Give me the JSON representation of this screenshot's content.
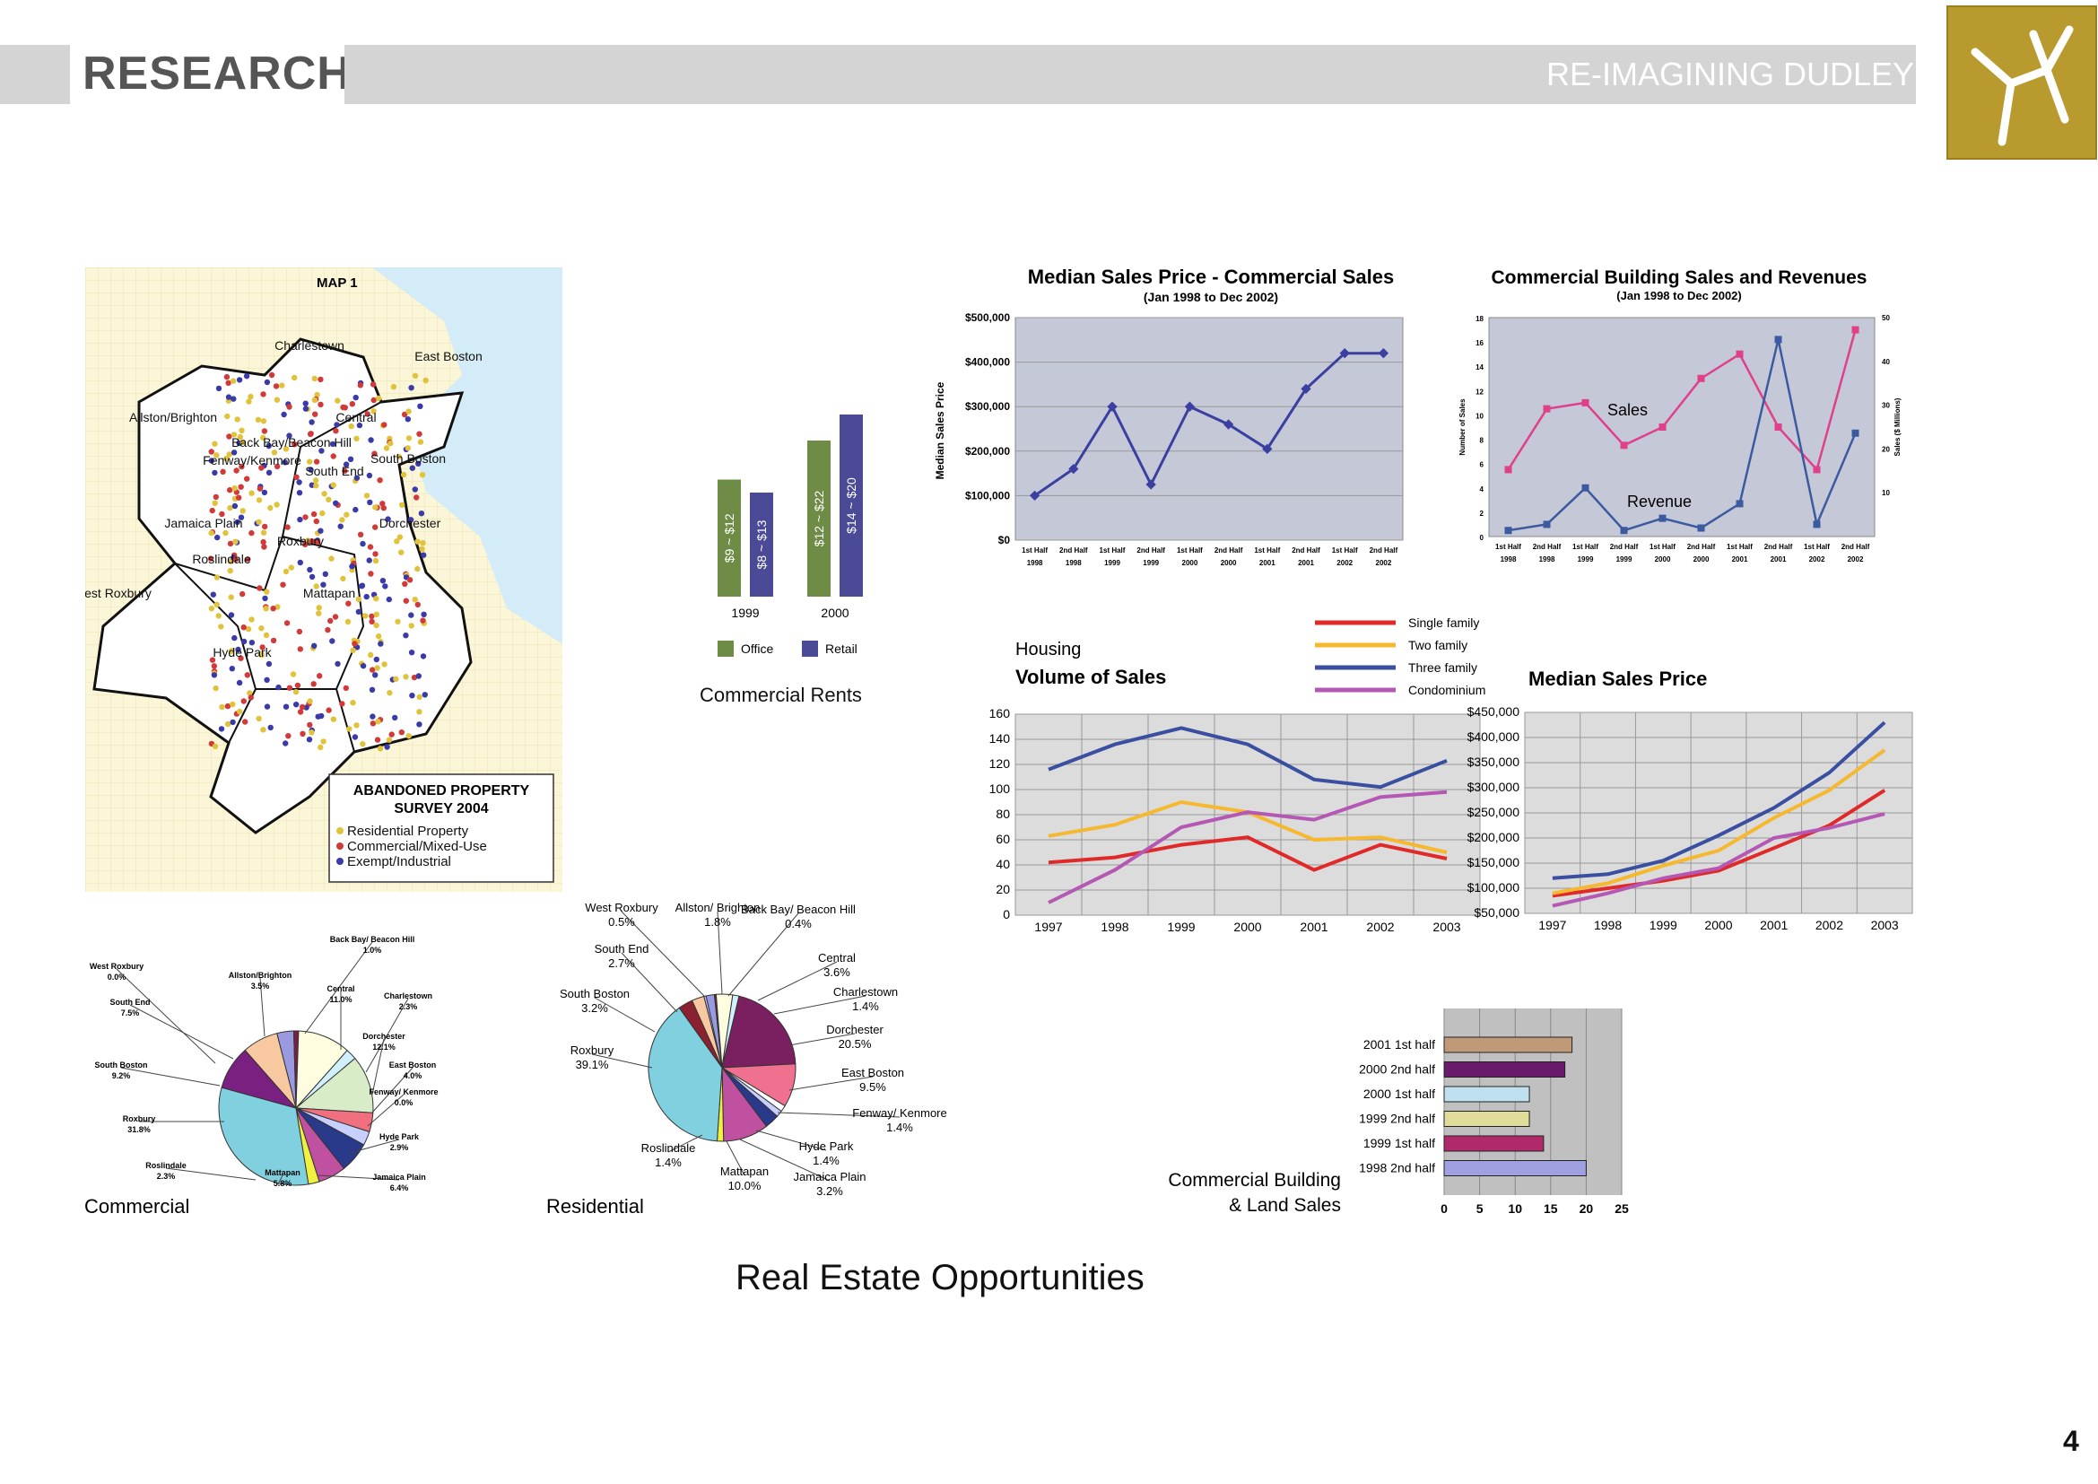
{
  "header": {
    "left_title": "RESEARCH",
    "right_title": "RE-IMAGINING DUDLEY",
    "page_number": "4",
    "accent": "#b89a2e"
  },
  "page_title": "Real Estate Opportunities",
  "map": {
    "map_label": "MAP 1",
    "legend_title_1": "ABANDONED PROPERTY",
    "legend_title_2": "SURVEY 2004",
    "legend_items": [
      {
        "label": "Residential Property",
        "color": "#e0c33a"
      },
      {
        "label": "Commercial/Mixed-Use",
        "color": "#d23a3a"
      },
      {
        "label": "Exempt/Industrial",
        "color": "#3a3aa8"
      }
    ],
    "neighborhoods": [
      "Charlestown",
      "East Boston",
      "Allston/Brighton",
      "Central",
      "Back Bay/Beacon Hill",
      "Fenway/Kenmore",
      "South Boston",
      "South End",
      "Jamaica Plain",
      "Dorchester",
      "Roxbury",
      "Roslindale",
      "Mattapan",
      "West Roxbury",
      "Hyde Park"
    ]
  },
  "rents": {
    "caption": "Commercial Rents",
    "categories": [
      "1999",
      "2000"
    ],
    "series": [
      {
        "name": "Office",
        "color": "#6e8c45",
        "labels": [
          "$9 ~ $12",
          "$12 ~ $22"
        ],
        "values": [
          9,
          12
        ]
      },
      {
        "name": "Retail",
        "color": "#4a4a96",
        "labels": [
          "$8 ~ $13",
          "$14 ~ $20"
        ],
        "values": [
          8,
          14
        ]
      }
    ]
  },
  "chart_data": [
    {
      "type": "line",
      "title": "Median Sales Price - Commercial Sales",
      "subtitle": "(Jan 1998 to Dec 2002)",
      "ylabel": "Median Sales Price",
      "categories": [
        "1st Half 1998",
        "2nd Half 1998",
        "1st Half 1999",
        "2nd Half 1999",
        "1st Half 2000",
        "2nd Half 2000",
        "1st Half 2001",
        "2nd Half 2001",
        "1st Half 2002",
        "2nd Half 2002"
      ],
      "x_top": [
        "1st Half",
        "2nd Half",
        "1st Half",
        "2nd Half",
        "1st Half",
        "2nd Half",
        "1st Half",
        "2nd Half",
        "1st Half",
        "2nd Half"
      ],
      "x_bottom": [
        "1998",
        "1998",
        "1999",
        "1999",
        "2000",
        "2000",
        "2001",
        "2001",
        "2002",
        "2002"
      ],
      "yticks": [
        "$0",
        "$100,000",
        "$200,000",
        "$300,000",
        "$400,000",
        "$500,000"
      ],
      "ylim": [
        0,
        500000
      ],
      "series": [
        {
          "values": [
            100000,
            160000,
            300000,
            125000,
            300000,
            260000,
            205000,
            340000,
            420000,
            420000
          ],
          "color": "#3b3fa0"
        }
      ]
    },
    {
      "type": "line",
      "title": "Commercial Building Sales and Revenues",
      "subtitle": "(Jan 1998 to Dec 2002)",
      "ylabel": "Number of Sales",
      "y2label": "Sales ($ Millions)",
      "x_top": [
        "1st Half",
        "2nd Half",
        "1st Half",
        "2nd Half",
        "1st Half",
        "2nd Half",
        "1st Half",
        "2nd Half",
        "1st Half",
        "2nd Half"
      ],
      "x_bottom": [
        "1998",
        "1998",
        "1999",
        "1999",
        "2000",
        "2000",
        "2001",
        "2001",
        "2002",
        "2002"
      ],
      "yticks": [
        "0",
        "2",
        "4",
        "6",
        "8",
        "10",
        "12",
        "14",
        "16",
        "18"
      ],
      "ylim": [
        0,
        18
      ],
      "y2ticks": [
        "10",
        "20",
        "30",
        "40",
        "50"
      ],
      "y2lim": [
        0,
        50
      ],
      "series": [
        {
          "name": "Sales",
          "axis": "left",
          "values": [
            5.5,
            10.5,
            11,
            7.5,
            9,
            13,
            15,
            9,
            5.5,
            17
          ],
          "color": "#e0408a"
        },
        {
          "name": "Revenue",
          "axis": "left",
          "values": [
            0.5,
            1,
            4,
            0.5,
            1.5,
            0.7,
            2.7,
            16.2,
            1,
            8.5
          ],
          "color": "#3b5aa0"
        }
      ]
    },
    {
      "type": "line",
      "title": "Volume of Sales",
      "subtitle": "Housing",
      "categories": [
        "1997",
        "1998",
        "1999",
        "2000",
        "2001",
        "2002",
        "2003"
      ],
      "yticks": [
        "0",
        "20",
        "40",
        "60",
        "80",
        "100",
        "120",
        "140",
        "160"
      ],
      "ylim": [
        0,
        160
      ],
      "series": [
        {
          "name": "Single family",
          "values": [
            42,
            46,
            56,
            62,
            36,
            56,
            45
          ],
          "color": "#e02a2a"
        },
        {
          "name": "Two family",
          "values": [
            63,
            72,
            90,
            82,
            60,
            62,
            50
          ],
          "color": "#f5b82e"
        },
        {
          "name": "Three family",
          "values": [
            116,
            136,
            149,
            136,
            108,
            102,
            123
          ],
          "color": "#3a4fa0"
        },
        {
          "name": "Condominium",
          "values": [
            10,
            36,
            70,
            82,
            76,
            94,
            98
          ],
          "color": "#b458b4"
        }
      ]
    },
    {
      "type": "line",
      "title": "Median Sales Price",
      "categories": [
        "1997",
        "1998",
        "1999",
        "2000",
        "2001",
        "2002",
        "2003"
      ],
      "yticks": [
        "$50,000",
        "$100,000",
        "$150,000",
        "$200,000",
        "$250,000",
        "$300,000",
        "$350,000",
        "$400,000",
        "$450,000"
      ],
      "ylim": [
        50000,
        450000
      ],
      "series": [
        {
          "name": "Single family",
          "values": [
            85000,
            100000,
            115000,
            135000,
            180000,
            225000,
            295000
          ],
          "color": "#e02a2a"
        },
        {
          "name": "Two family",
          "values": [
            90000,
            110000,
            145000,
            175000,
            240000,
            295000,
            375000
          ],
          "color": "#f5b82e"
        },
        {
          "name": "Three family",
          "values": [
            120000,
            128000,
            155000,
            205000,
            260000,
            330000,
            430000
          ],
          "color": "#3a4fa0"
        },
        {
          "name": "Condominium",
          "values": [
            65000,
            90000,
            120000,
            140000,
            200000,
            220000,
            248000
          ],
          "color": "#b458b4"
        }
      ]
    },
    {
      "type": "pie",
      "caption": "Commercial",
      "slices": [
        {
          "label": "West Roxbury",
          "value": "0.0%",
          "pct": 0.0,
          "color": "#c0c0ff"
        },
        {
          "label": "Allston/Brighton",
          "value": "3.5%",
          "pct": 3.5,
          "color": "#9a9ae0"
        },
        {
          "label": "Back Bay/ Beacon Hill",
          "value": "1.0%",
          "pct": 1.0,
          "color": "#7a2040"
        },
        {
          "label": "Central",
          "value": "11.0%",
          "pct": 11.0,
          "color": "#fffde0"
        },
        {
          "label": "Charlestown",
          "value": "2.3%",
          "pct": 2.3,
          "color": "#d0f0ff"
        },
        {
          "label": "Dorchester",
          "value": "12.1%",
          "pct": 12.1,
          "color": "#d8ecc8"
        },
        {
          "label": "East Boston",
          "value": "4.0%",
          "pct": 4.0,
          "color": "#f07080"
        },
        {
          "label": "Fenway/ Kenmore",
          "value": "0.0%",
          "pct": 0.0,
          "color": "#ffffff"
        },
        {
          "label": "Hyde Park",
          "value": "2.9%",
          "pct": 2.9,
          "color": "#c8d0ff"
        },
        {
          "label": "Jamaica Plain",
          "value": "6.4%",
          "pct": 6.4,
          "color": "#2a3a8a"
        },
        {
          "label": "Mattapan",
          "value": "5.8%",
          "pct": 5.8,
          "color": "#c050a0"
        },
        {
          "label": "Roslindale",
          "value": "2.3%",
          "pct": 2.3,
          "color": "#f0f040"
        },
        {
          "label": "Roxbury",
          "value": "31.8%",
          "pct": 31.8,
          "color": "#80d0e0"
        },
        {
          "label": "South Boston",
          "value": "9.2%",
          "pct": 9.2,
          "color": "#7a2080"
        },
        {
          "label": "South End",
          "value": "7.5%",
          "pct": 7.5,
          "color": "#f8c8a0"
        }
      ]
    },
    {
      "type": "pie",
      "caption": "Residential",
      "slices": [
        {
          "label": "West Roxbury",
          "value": "0.5%",
          "pct": 0.5,
          "color": "#c0c0ff"
        },
        {
          "label": "Allston/ Brighton",
          "value": "1.8%",
          "pct": 1.8,
          "color": "#9a9ae0"
        },
        {
          "label": "Back Bay/ Beacon Hill",
          "value": "0.4%",
          "pct": 0.4,
          "color": "#7a2040"
        },
        {
          "label": "Central",
          "value": "3.6%",
          "pct": 3.6,
          "color": "#fffde0"
        },
        {
          "label": "Charlestown",
          "value": "1.4%",
          "pct": 1.4,
          "color": "#d0f0ff"
        },
        {
          "label": "Dorchester",
          "value": "20.5%",
          "pct": 20.5,
          "color": "#7a2060"
        },
        {
          "label": "East Boston",
          "value": "9.5%",
          "pct": 9.5,
          "color": "#f07090"
        },
        {
          "label": "Fenway/ Kenmore",
          "value": "1.4%",
          "pct": 1.4,
          "color": "#ffffff"
        },
        {
          "label": "Hyde Park",
          "value": "1.4%",
          "pct": 1.4,
          "color": "#c8d0ff"
        },
        {
          "label": "Jamaica Plain",
          "value": "3.2%",
          "pct": 3.2,
          "color": "#2a3a8a"
        },
        {
          "label": "Mattapan",
          "value": "10.0%",
          "pct": 10.0,
          "color": "#c050a0"
        },
        {
          "label": "Roslindale",
          "value": "1.4%",
          "pct": 1.4,
          "color": "#f0f040"
        },
        {
          "label": "Roxbury",
          "value": "39.1%",
          "pct": 39.1,
          "color": "#80d0e0"
        },
        {
          "label": "South Boston",
          "value": "3.2%",
          "pct": 3.2,
          "color": "#8a2030"
        },
        {
          "label": "South End",
          "value": "2.7%",
          "pct": 2.7,
          "color": "#f8c8a0"
        }
      ]
    },
    {
      "type": "bar",
      "orientation": "horizontal",
      "caption_1": "Commercial Building",
      "caption_2": "& Land Sales",
      "categories": [
        "2001 1st half",
        "2000 2nd half",
        "2000 1st half",
        "1999 2nd half",
        "1999 1st half",
        "1998 2nd half"
      ],
      "values": [
        18,
        17,
        12,
        12,
        14,
        20
      ],
      "colors": [
        "#c09a78",
        "#6a1a6a",
        "#c0e0f0",
        "#e0dc9a",
        "#b02a6a",
        "#a0a0e0"
      ],
      "xticks": [
        "0",
        "5",
        "10",
        "15",
        "20",
        "25"
      ],
      "xlim": [
        0,
        25
      ]
    }
  ]
}
